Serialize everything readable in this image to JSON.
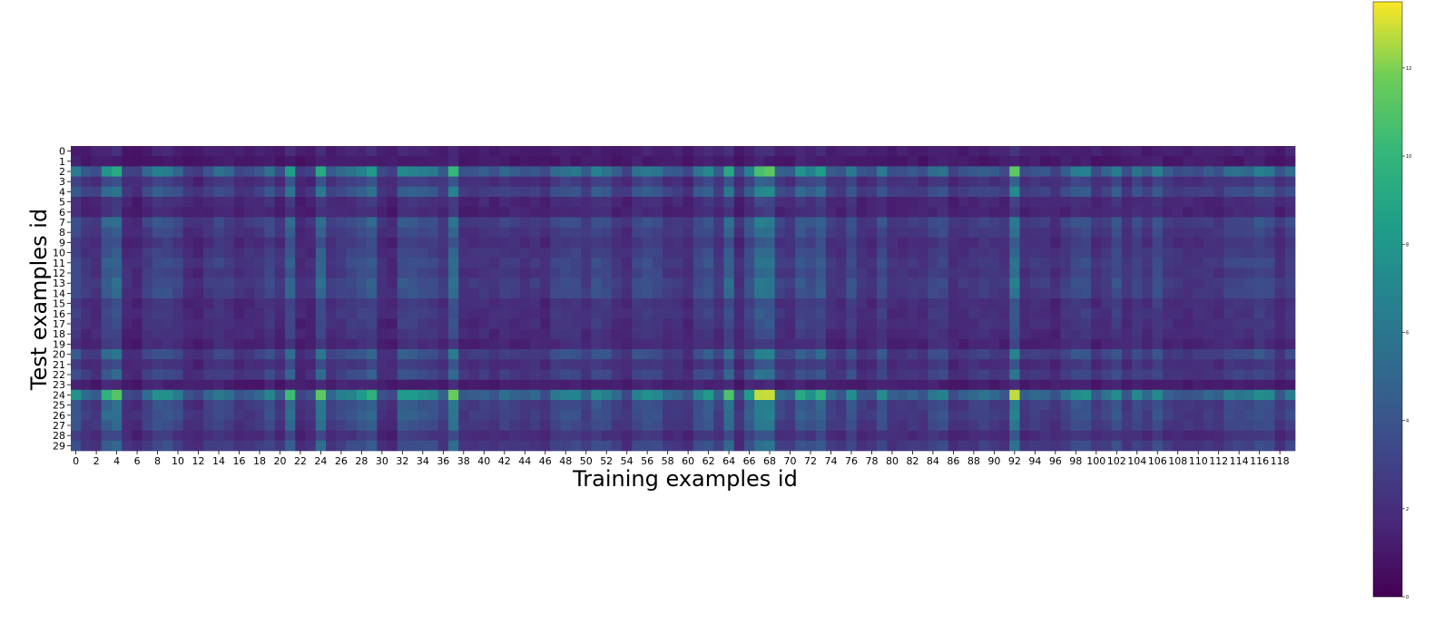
{
  "chart_data": {
    "type": "heatmap",
    "title": "",
    "xlabel": "Training examples id",
    "ylabel": "Test examples id",
    "rows": 30,
    "cols": 120,
    "x_ticks": [
      "0",
      "2",
      "4",
      "6",
      "8",
      "10",
      "12",
      "14",
      "16",
      "18",
      "20",
      "22",
      "24",
      "26",
      "28",
      "30",
      "32",
      "34",
      "36",
      "38",
      "40",
      "42",
      "44",
      "46",
      "48",
      "50",
      "52",
      "54",
      "56",
      "58",
      "60",
      "62",
      "64",
      "66",
      "68",
      "70",
      "72",
      "74",
      "76",
      "78",
      "80",
      "82",
      "84",
      "86",
      "88",
      "90",
      "92",
      "94",
      "96",
      "98",
      "100",
      "102",
      "104",
      "106",
      "108",
      "110",
      "112",
      "114",
      "116",
      "118"
    ],
    "y_ticks": [
      "0",
      "1",
      "2",
      "3",
      "4",
      "5",
      "6",
      "7",
      "8",
      "9",
      "10",
      "11",
      "12",
      "13",
      "14",
      "15",
      "16",
      "17",
      "18",
      "19",
      "20",
      "21",
      "22",
      "23",
      "24",
      "25",
      "26",
      "27",
      "28",
      "29"
    ],
    "colormap": "viridis",
    "vmin": 0,
    "vmax": 13.5,
    "colorbar_ticks": [
      "0",
      "2",
      "4",
      "6",
      "8",
      "10",
      "12"
    ],
    "row_weights": [
      0.12,
      0.06,
      0.85,
      0.35,
      0.55,
      0.22,
      0.18,
      0.5,
      0.42,
      0.32,
      0.38,
      0.45,
      0.4,
      0.48,
      0.46,
      0.3,
      0.32,
      0.3,
      0.26,
      0.2,
      0.52,
      0.3,
      0.44,
      0.1,
      1.0,
      0.5,
      0.52,
      0.46,
      0.28,
      0.45
    ],
    "col_weights": [
      0.55,
      0.35,
      0.3,
      0.7,
      0.8,
      0.25,
      0.2,
      0.4,
      0.55,
      0.55,
      0.45,
      0.25,
      0.2,
      0.35,
      0.45,
      0.4,
      0.25,
      0.3,
      0.35,
      0.5,
      0.3,
      0.75,
      0.2,
      0.25,
      0.82,
      0.35,
      0.45,
      0.5,
      0.6,
      0.7,
      0.25,
      0.2,
      0.6,
      0.6,
      0.55,
      0.5,
      0.35,
      0.85,
      0.3,
      0.3,
      0.35,
      0.3,
      0.4,
      0.35,
      0.3,
      0.35,
      0.25,
      0.45,
      0.5,
      0.5,
      0.35,
      0.55,
      0.5,
      0.35,
      0.25,
      0.5,
      0.55,
      0.5,
      0.35,
      0.35,
      0.25,
      0.5,
      0.6,
      0.35,
      0.8,
      0.25,
      0.6,
      0.95,
      0.95,
      0.4,
      0.35,
      0.65,
      0.55,
      0.7,
      0.35,
      0.3,
      0.55,
      0.3,
      0.3,
      0.55,
      0.3,
      0.3,
      0.35,
      0.3,
      0.45,
      0.5,
      0.25,
      0.3,
      0.35,
      0.4,
      0.35,
      0.3,
      0.95,
      0.3,
      0.35,
      0.35,
      0.25,
      0.4,
      0.55,
      0.55,
      0.3,
      0.4,
      0.55,
      0.3,
      0.5,
      0.35,
      0.55,
      0.35,
      0.3,
      0.3,
      0.3,
      0.35,
      0.3,
      0.45,
      0.45,
      0.45,
      0.55,
      0.5,
      0.3,
      0.45
    ]
  }
}
